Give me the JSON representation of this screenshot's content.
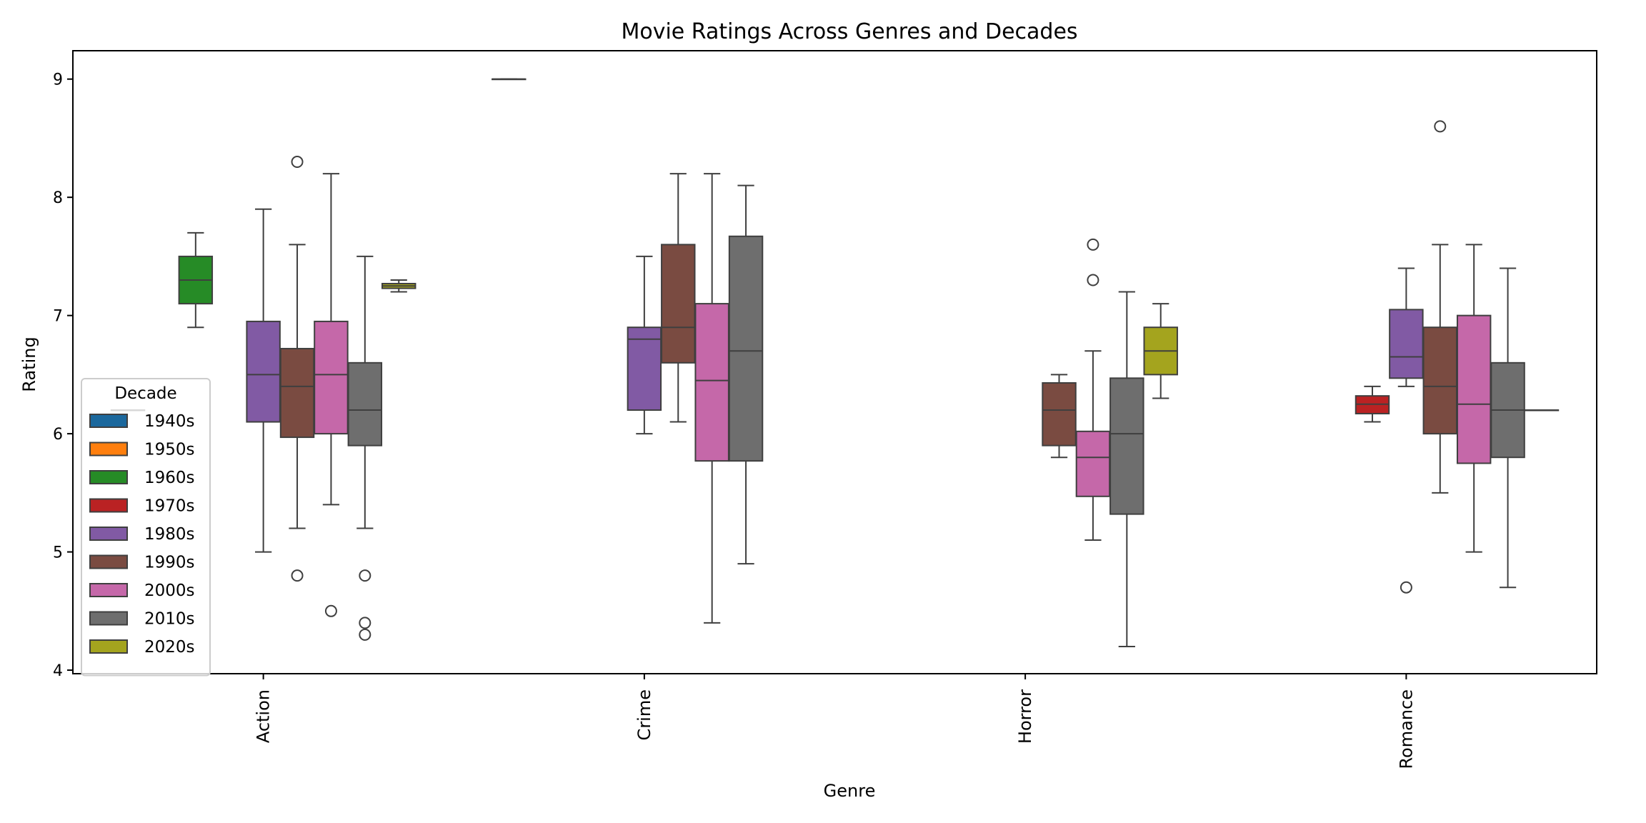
{
  "chart_data": {
    "type": "box",
    "title": "Movie Ratings Across Genres and Decades",
    "xlabel": "Genre",
    "ylabel": "Rating",
    "ylim": [
      3.97,
      9.24
    ],
    "yticks": [
      4,
      5,
      6,
      7,
      8,
      9
    ],
    "categories": [
      "Action",
      "Crime",
      "Horror",
      "Romance"
    ],
    "legend": {
      "title": "Decade",
      "position": "left",
      "entries": [
        "1940s",
        "1950s",
        "1960s",
        "1970s",
        "1980s",
        "1990s",
        "2000s",
        "2010s",
        "2020s"
      ]
    },
    "series": [
      {
        "name": "1940s",
        "color": "#1f77b4",
        "boxes": [
          {
            "category": "Action",
            "min": 6.2,
            "q1": 6.2,
            "median": 6.2,
            "q3": 6.2,
            "max": 6.2,
            "outliers": []
          },
          {
            "category": "Crime",
            "min": 9.0,
            "q1": 9.0,
            "median": 9.0,
            "q3": 9.0,
            "max": 9.0,
            "outliers": []
          }
        ]
      },
      {
        "name": "1950s",
        "color": "#ff7f0e",
        "boxes": []
      },
      {
        "name": "1960s",
        "color": "#2ca02c",
        "boxes": [
          {
            "category": "Action",
            "min": 6.9,
            "q1": 7.1,
            "median": 7.3,
            "q3": 7.5,
            "max": 7.7,
            "outliers": []
          }
        ]
      },
      {
        "name": "1970s",
        "color": "#d62728",
        "boxes": [
          {
            "category": "Romance",
            "min": 6.1,
            "q1": 6.17,
            "median": 6.25,
            "q3": 6.32,
            "max": 6.4,
            "outliers": []
          }
        ]
      },
      {
        "name": "1980s",
        "color": "#9467bd",
        "boxes": [
          {
            "category": "Action",
            "min": 5.0,
            "q1": 6.1,
            "median": 6.5,
            "q3": 6.95,
            "max": 7.9,
            "outliers": []
          },
          {
            "category": "Crime",
            "min": 6.0,
            "q1": 6.2,
            "median": 6.8,
            "q3": 6.9,
            "max": 7.5,
            "outliers": []
          },
          {
            "category": "Romance",
            "min": 6.4,
            "q1": 6.47,
            "median": 6.65,
            "q3": 7.05,
            "max": 7.4,
            "outliers": [
              4.7
            ]
          }
        ]
      },
      {
        "name": "1990s",
        "color": "#8c564b",
        "boxes": [
          {
            "category": "Action",
            "min": 5.2,
            "q1": 5.97,
            "median": 6.4,
            "q3": 6.72,
            "max": 7.6,
            "outliers": [
              8.3,
              4.8
            ]
          },
          {
            "category": "Crime",
            "min": 6.1,
            "q1": 6.6,
            "median": 6.9,
            "q3": 7.6,
            "max": 8.2,
            "outliers": []
          },
          {
            "category": "Horror",
            "min": 5.8,
            "q1": 5.9,
            "median": 6.2,
            "q3": 6.43,
            "max": 6.5,
            "outliers": []
          },
          {
            "category": "Romance",
            "min": 5.5,
            "q1": 6.0,
            "median": 6.4,
            "q3": 6.9,
            "max": 7.6,
            "outliers": [
              8.6
            ]
          }
        ]
      },
      {
        "name": "2000s",
        "color": "#e377c2",
        "boxes": [
          {
            "category": "Action",
            "min": 5.4,
            "q1": 6.0,
            "median": 6.5,
            "q3": 6.95,
            "max": 8.2,
            "outliers": [
              4.5
            ]
          },
          {
            "category": "Crime",
            "min": 4.4,
            "q1": 5.77,
            "median": 6.45,
            "q3": 7.1,
            "max": 8.2,
            "outliers": []
          },
          {
            "category": "Horror",
            "min": 5.1,
            "q1": 5.47,
            "median": 5.8,
            "q3": 6.02,
            "max": 6.7,
            "outliers": [
              7.3,
              7.6
            ]
          },
          {
            "category": "Romance",
            "min": 5.0,
            "q1": 5.75,
            "median": 6.25,
            "q3": 7.0,
            "max": 7.6,
            "outliers": []
          }
        ]
      },
      {
        "name": "2010s",
        "color": "#7f7f7f",
        "boxes": [
          {
            "category": "Action",
            "min": 5.2,
            "q1": 5.9,
            "median": 6.2,
            "q3": 6.6,
            "max": 7.5,
            "outliers": [
              4.8,
              4.4,
              4.3
            ]
          },
          {
            "category": "Crime",
            "min": 4.9,
            "q1": 5.77,
            "median": 6.7,
            "q3": 7.67,
            "max": 8.1,
            "outliers": []
          },
          {
            "category": "Horror",
            "min": 4.2,
            "q1": 5.32,
            "median": 6.0,
            "q3": 6.47,
            "max": 7.2,
            "outliers": []
          },
          {
            "category": "Romance",
            "min": 4.7,
            "q1": 5.8,
            "median": 6.2,
            "q3": 6.6,
            "max": 7.4,
            "outliers": []
          }
        ]
      },
      {
        "name": "2020s",
        "color": "#bcbd22",
        "boxes": [
          {
            "category": "Action",
            "min": 7.2,
            "q1": 7.23,
            "median": 7.25,
            "q3": 7.27,
            "max": 7.3,
            "outliers": []
          },
          {
            "category": "Horror",
            "min": 6.3,
            "q1": 6.5,
            "median": 6.7,
            "q3": 6.9,
            "max": 7.1,
            "outliers": []
          },
          {
            "category": "Romance",
            "min": 6.2,
            "q1": 6.2,
            "median": 6.2,
            "q3": 6.2,
            "max": 6.2,
            "outliers": []
          }
        ]
      }
    ]
  }
}
